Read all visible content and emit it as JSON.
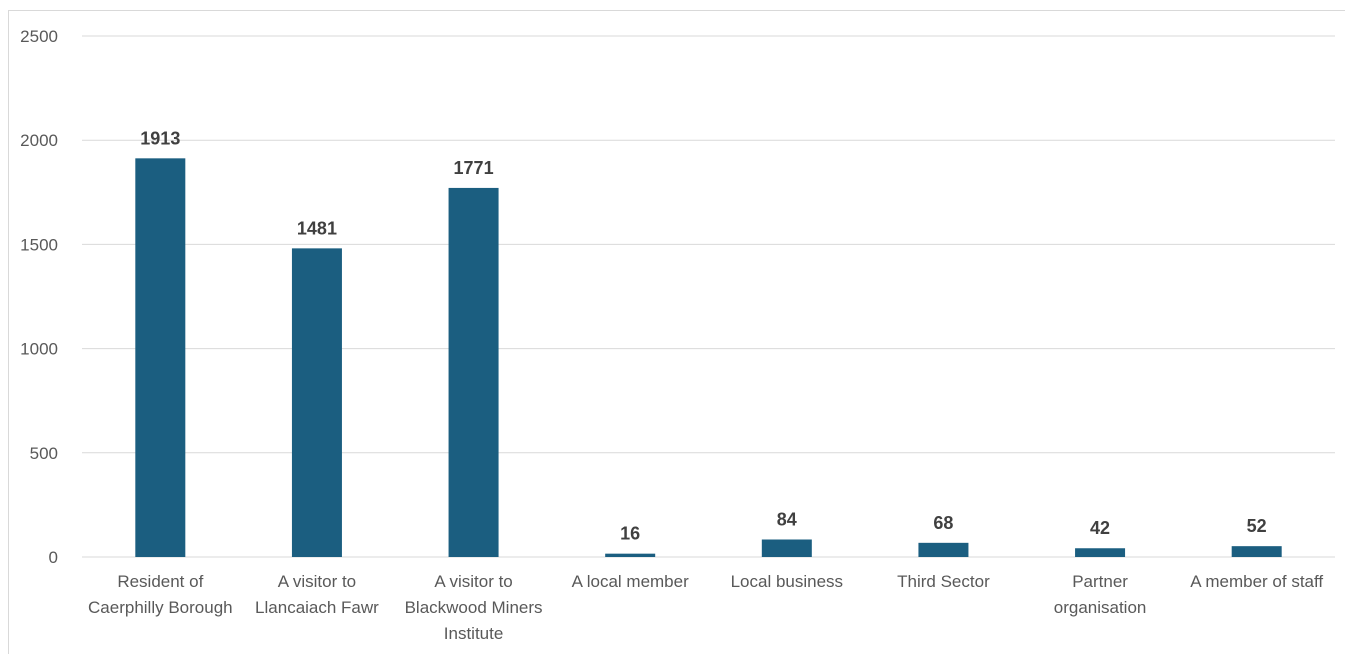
{
  "chart_data": {
    "type": "bar",
    "categories": [
      [
        "Resident of",
        "Caerphilly Borough"
      ],
      [
        "A visitor to",
        "Llancaiach Fawr"
      ],
      [
        "A visitor to",
        "Blackwood Miners",
        "Institute"
      ],
      [
        "A local member"
      ],
      [
        "Local business"
      ],
      [
        "Third Sector"
      ],
      [
        "Partner",
        "organisation"
      ],
      [
        "A member of staff"
      ]
    ],
    "values": [
      1913,
      1481,
      1771,
      16,
      84,
      68,
      42,
      52
    ],
    "data_labels": [
      "1913",
      "1481",
      "1771",
      "16",
      "84",
      "68",
      "42",
      "52"
    ],
    "yticks": [
      "0",
      "500",
      "1000",
      "1500",
      "2000",
      "2500"
    ],
    "ylim": [
      0,
      2500
    ],
    "grid": true,
    "bar_color": "#1b5e80",
    "grid_color": "#d9d9d9"
  }
}
